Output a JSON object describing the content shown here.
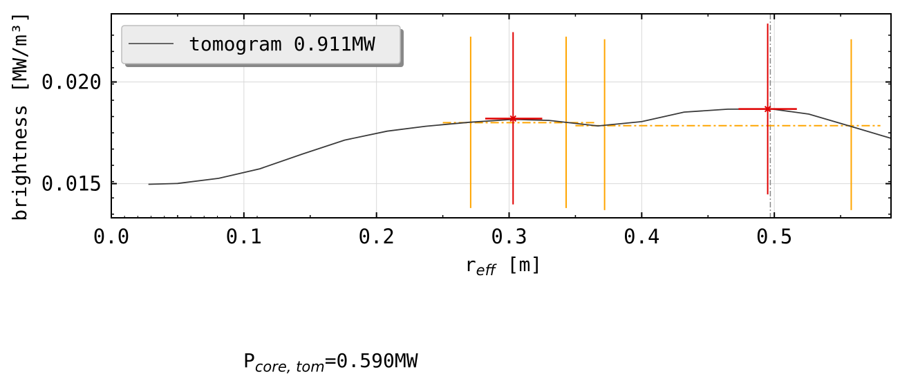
{
  "chart_data": {
    "type": "line",
    "xlabel_base": "r",
    "xlabel_sub": "eff",
    "xlabel_unit": " [m]",
    "ylabel": "brightness [MW/m³]",
    "xlim": [
      0.0,
      0.588
    ],
    "ylim": [
      0.01332,
      0.02335
    ],
    "xticks": [
      0.0,
      0.1,
      0.2,
      0.3,
      0.4,
      0.5
    ],
    "xtick_labels": [
      "0.0",
      "0.1",
      "0.2",
      "0.3",
      "0.4",
      "0.5"
    ],
    "yticks": [
      0.015,
      0.02
    ],
    "ytick_labels": [
      "0.015",
      "0.020"
    ],
    "grid": true,
    "legend": {
      "location": "top-left",
      "entries": [
        "tomogram 0.911MW"
      ]
    },
    "colors": {
      "tomogram": "#3a3a3a",
      "orange": "#ffa500",
      "red": "#e00000",
      "vline": "#888888"
    },
    "series": [
      {
        "name": "tomogram 0.911MW",
        "x": [
          0.028,
          0.05,
          0.081,
          0.112,
          0.144,
          0.176,
          0.208,
          0.237,
          0.27,
          0.303,
          0.33,
          0.367,
          0.4,
          0.432,
          0.465,
          0.498,
          0.526,
          0.557,
          0.588
        ],
        "y": [
          0.01497,
          0.01501,
          0.01526,
          0.01573,
          0.01645,
          0.01714,
          0.01758,
          0.01782,
          0.01802,
          0.01816,
          0.01811,
          0.01784,
          0.01805,
          0.01852,
          0.01866,
          0.01867,
          0.01842,
          0.01783,
          0.01723
        ]
      }
    ],
    "orange_vertical_bars": [
      {
        "x": 0.271,
        "ylow": 0.0138,
        "yhigh": 0.02223
      },
      {
        "x": 0.343,
        "ylow": 0.0138,
        "yhigh": 0.02223
      },
      {
        "x": 0.372,
        "ylow": 0.0137,
        "yhigh": 0.0221
      },
      {
        "x": 0.558,
        "ylow": 0.0137,
        "yhigh": 0.0221
      }
    ],
    "orange_segments": [
      {
        "x0": 0.25,
        "x1": 0.365,
        "y": 0.018
      },
      {
        "x0": 0.35,
        "x1": 0.58,
        "y": 0.01785
      }
    ],
    "red_points": [
      {
        "x": 0.303,
        "y": 0.0182,
        "xerr_low": 0.282,
        "xerr_high": 0.325,
        "yerr_low": 0.01398,
        "yerr_high": 0.02245
      },
      {
        "x": 0.495,
        "y": 0.01867,
        "xerr_low": 0.473,
        "xerr_high": 0.517,
        "yerr_low": 0.01447,
        "yerr_high": 0.02287
      }
    ],
    "vertical_line": {
      "x": 0.497
    }
  },
  "annotation": {
    "base": "P",
    "sub": "core, tom",
    "value": "=0.590MW"
  }
}
